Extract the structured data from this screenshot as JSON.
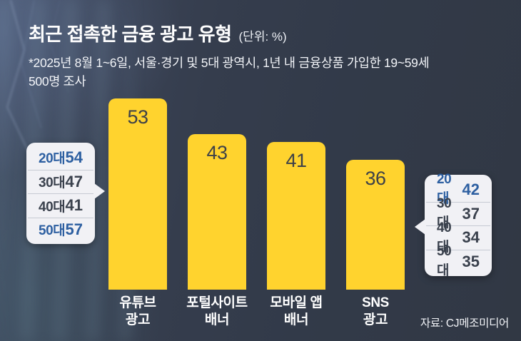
{
  "header": {
    "title": "최근 접촉한 금융 광고 유형",
    "unit": "(단위: %)",
    "subtitle_lines": [
      "*2025년 8월 1~6일, 서울·경기 및 5대 광역시, 1년 내 금융상품 가입한 19~59세",
      "500명 조사"
    ]
  },
  "chart_data": {
    "type": "bar",
    "title": "최근 접촉한 금융 광고 유형",
    "unit": "%",
    "categories": [
      "유튜브 광고",
      "포털사이트 배너",
      "모바일 앱 배너",
      "SNS 광고"
    ],
    "category_lines": [
      [
        "유튜브",
        "광고"
      ],
      [
        "포털사이트",
        "배너"
      ],
      [
        "모바일 앱",
        "배너"
      ],
      [
        "SNS",
        "광고"
      ]
    ],
    "values": [
      53,
      43,
      41,
      36
    ],
    "ylim": [
      0,
      60
    ],
    "grid": false,
    "legend": false,
    "bar_color": "#ffd32e",
    "callouts": [
      {
        "target": "유튜브 광고",
        "side": "left",
        "rows": [
          {
            "label": "20대",
            "value": 54,
            "highlight": true
          },
          {
            "label": "30대",
            "value": 47,
            "highlight": false
          },
          {
            "label": "40대",
            "value": 41,
            "highlight": false
          },
          {
            "label": "50대",
            "value": 57,
            "highlight": true
          }
        ]
      },
      {
        "target": "SNS 광고",
        "side": "right",
        "rows": [
          {
            "label": "20대",
            "value": 42,
            "highlight": true
          },
          {
            "label": "30대",
            "value": 37,
            "highlight": false
          },
          {
            "label": "40대",
            "value": 34,
            "highlight": false
          },
          {
            "label": "50대",
            "value": 35,
            "highlight": false
          }
        ]
      }
    ]
  },
  "footer": {
    "source": "자료: CJ메조미디어"
  },
  "colors": {
    "background": "#343c4b",
    "bar": "#ffd32e",
    "bar_value_text": "#3d4148",
    "callout_bg": "#f1f1f5",
    "highlight_text": "#2d5fa1",
    "normal_text": "#3a414d",
    "title_text": "#ffffff"
  }
}
